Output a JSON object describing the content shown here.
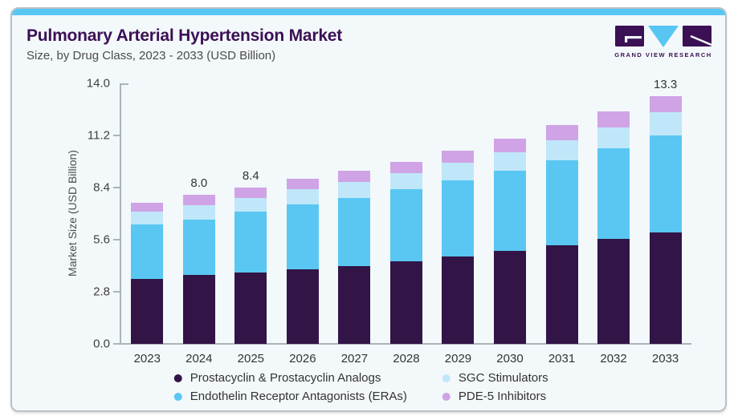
{
  "header": {
    "title": "Pulmonary Arterial Hypertension Market",
    "subtitle": "Size, by Drug Class, 2023 - 2033 (USD Billion)",
    "logo": {
      "caption": "GRAND VIEW RESEARCH"
    }
  },
  "chart_data": {
    "type": "bar",
    "stacked": true,
    "title": "Pulmonary Arterial Hypertension Market",
    "subtitle": "Size, by Drug Class, 2023 - 2033 (USD Billion)",
    "xlabel": "",
    "ylabel": "Market Size (USD Billion)",
    "ylim": [
      0,
      14.0
    ],
    "ytick_labels": [
      "0.0",
      "2.8",
      "5.6",
      "8.4",
      "11.2",
      "14.0"
    ],
    "grid": false,
    "legend_position": "bottom",
    "categories": [
      "2023",
      "2024",
      "2025",
      "2026",
      "2027",
      "2028",
      "2029",
      "2030",
      "2031",
      "2032",
      "2033"
    ],
    "series": [
      {
        "name": "Prostacyclin & Prostacyclin Analogs",
        "color": "#321447",
        "values": [
          3.5,
          3.7,
          3.85,
          4.0,
          4.2,
          4.45,
          4.7,
          5.0,
          5.3,
          5.65,
          6.0
        ]
      },
      {
        "name": "Endothelin Receptor Antagonists (ERAs)",
        "color": "#59c7f2",
        "values": [
          2.9,
          3.0,
          3.25,
          3.5,
          3.65,
          3.85,
          4.1,
          4.3,
          4.55,
          4.85,
          5.18
        ]
      },
      {
        "name": "SGC Stimulators",
        "color": "#c0e7f9",
        "values": [
          0.7,
          0.75,
          0.75,
          0.8,
          0.85,
          0.88,
          0.93,
          1.0,
          1.1,
          1.15,
          1.25
        ]
      },
      {
        "name": "PDE-5 Inhibitors",
        "color": "#cfa3e6",
        "values": [
          0.5,
          0.55,
          0.55,
          0.55,
          0.6,
          0.62,
          0.67,
          0.75,
          0.8,
          0.85,
          0.87
        ]
      }
    ],
    "totals": [
      7.6,
      8.0,
      8.4,
      8.85,
      9.3,
      9.8,
      10.4,
      11.05,
      11.75,
      12.5,
      13.3
    ],
    "bar_labels": [
      "",
      "8.0",
      "8.4",
      "",
      "",
      "",
      "",
      "",
      "",
      "",
      "13.3"
    ],
    "legend": [
      {
        "label": "Prostacyclin & Prostacyclin Analogs",
        "color": "#321447"
      },
      {
        "label": "Endothelin Receptor Antagonists (ERAs)",
        "color": "#59c7f2"
      },
      {
        "label": "SGC Stimulators",
        "color": "#c0e7f9"
      },
      {
        "label": "PDE-5 Inhibitors",
        "color": "#cfa3e6"
      }
    ]
  },
  "colors": {
    "card_background": "#f3f8fb",
    "top_strip": "#57c6f2",
    "title_purple": "#3b1054",
    "axis_line": "#a9b4bc",
    "text_gray": "#333333"
  }
}
